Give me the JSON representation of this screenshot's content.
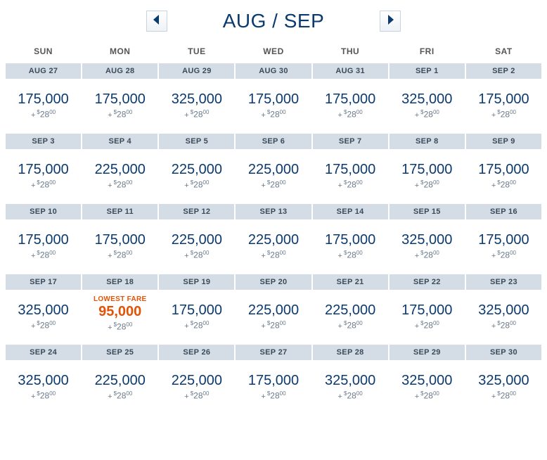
{
  "header": {
    "title": "AUG / SEP"
  },
  "daysOfWeek": [
    "SUN",
    "MON",
    "TUE",
    "WED",
    "THU",
    "FRI",
    "SAT"
  ],
  "fee": {
    "currency": "$",
    "whole": "28",
    "cents": "00"
  },
  "lowest_label": "LOWEST FARE",
  "colors": {
    "primary_text": "#0b3a6f",
    "accent": "#e35205",
    "date_strip_bg": "#d4dde6",
    "fee_text": "#6a7a8a"
  },
  "weeks": [
    {
      "dates": [
        "AUG 27",
        "AUG 28",
        "AUG 29",
        "AUG 30",
        "AUG 31",
        "SEP 1",
        "SEP 2"
      ],
      "cells": [
        {
          "miles": "175,000",
          "lowest": false
        },
        {
          "miles": "175,000",
          "lowest": false
        },
        {
          "miles": "325,000",
          "lowest": false
        },
        {
          "miles": "175,000",
          "lowest": false
        },
        {
          "miles": "175,000",
          "lowest": false
        },
        {
          "miles": "325,000",
          "lowest": false
        },
        {
          "miles": "175,000",
          "lowest": false
        }
      ]
    },
    {
      "dates": [
        "SEP 3",
        "SEP 4",
        "SEP 5",
        "SEP 6",
        "SEP 7",
        "SEP 8",
        "SEP 9"
      ],
      "cells": [
        {
          "miles": "175,000",
          "lowest": false
        },
        {
          "miles": "225,000",
          "lowest": false
        },
        {
          "miles": "225,000",
          "lowest": false
        },
        {
          "miles": "225,000",
          "lowest": false
        },
        {
          "miles": "175,000",
          "lowest": false
        },
        {
          "miles": "175,000",
          "lowest": false
        },
        {
          "miles": "175,000",
          "lowest": false
        }
      ]
    },
    {
      "dates": [
        "SEP 10",
        "SEP 11",
        "SEP 12",
        "SEP 13",
        "SEP 14",
        "SEP 15",
        "SEP 16"
      ],
      "cells": [
        {
          "miles": "175,000",
          "lowest": false
        },
        {
          "miles": "175,000",
          "lowest": false
        },
        {
          "miles": "225,000",
          "lowest": false
        },
        {
          "miles": "225,000",
          "lowest": false
        },
        {
          "miles": "175,000",
          "lowest": false
        },
        {
          "miles": "325,000",
          "lowest": false
        },
        {
          "miles": "175,000",
          "lowest": false
        }
      ]
    },
    {
      "dates": [
        "SEP 17",
        "SEP 18",
        "SEP 19",
        "SEP 20",
        "SEP 21",
        "SEP 22",
        "SEP 23"
      ],
      "cells": [
        {
          "miles": "325,000",
          "lowest": false
        },
        {
          "miles": "95,000",
          "lowest": true
        },
        {
          "miles": "175,000",
          "lowest": false
        },
        {
          "miles": "225,000",
          "lowest": false
        },
        {
          "miles": "225,000",
          "lowest": false
        },
        {
          "miles": "175,000",
          "lowest": false
        },
        {
          "miles": "325,000",
          "lowest": false
        }
      ]
    },
    {
      "dates": [
        "SEP 24",
        "SEP 25",
        "SEP 26",
        "SEP 27",
        "SEP 28",
        "SEP 29",
        "SEP 30"
      ],
      "cells": [
        {
          "miles": "325,000",
          "lowest": false
        },
        {
          "miles": "225,000",
          "lowest": false
        },
        {
          "miles": "225,000",
          "lowest": false
        },
        {
          "miles": "175,000",
          "lowest": false
        },
        {
          "miles": "325,000",
          "lowest": false
        },
        {
          "miles": "325,000",
          "lowest": false
        },
        {
          "miles": "325,000",
          "lowest": false
        }
      ]
    }
  ]
}
